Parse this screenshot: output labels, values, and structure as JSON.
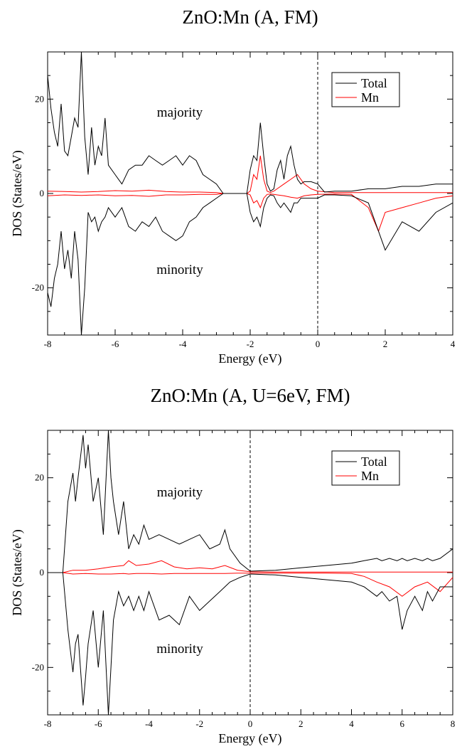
{
  "chart_data": [
    {
      "type": "line",
      "title": "ZnO:Mn (A, FM)",
      "xlabel": "Energy (eV)",
      "ylabel": "DOS (States/eV)",
      "xlim": [
        -8,
        4
      ],
      "ylim": [
        -30,
        30
      ],
      "xticks": [
        "-8",
        "-6",
        "-4",
        "-2",
        "0",
        "2",
        "4"
      ],
      "yticks": [
        "20",
        "0",
        "-20"
      ],
      "fermi_level": 0,
      "annotations": [
        "majority",
        "minority"
      ],
      "legend_position": "top-right",
      "series": [
        {
          "name": "Total",
          "color": "#000000",
          "x": [
            -8.0,
            -7.9,
            -7.8,
            -7.7,
            -7.6,
            -7.5,
            -7.4,
            -7.3,
            -7.2,
            -7.1,
            -7.0,
            -6.9,
            -6.8,
            -6.7,
            -6.6,
            -6.5,
            -6.4,
            -6.3,
            -6.2,
            -6.0,
            -5.9,
            -5.8,
            -5.6,
            -5.4,
            -5.2,
            -5.0,
            -4.8,
            -4.6,
            -4.4,
            -4.2,
            -4.0,
            -3.8,
            -3.6,
            -3.4,
            -3.2,
            -3.0,
            -2.8,
            -2.6,
            -2.4,
            -2.2,
            -2.1,
            -2.0,
            -1.9,
            -1.8,
            -1.7,
            -1.6,
            -1.5,
            -1.4,
            -1.3,
            -1.2,
            -1.1,
            -1.0,
            -0.9,
            -0.8,
            -0.7,
            -0.6,
            -0.5,
            -0.4,
            -0.2,
            0.0,
            0.2,
            0.5,
            1.0,
            1.5,
            2.0,
            2.5,
            3.0,
            3.5,
            4.0
          ],
          "majority": [
            25,
            18,
            13,
            10,
            19,
            9,
            8,
            12,
            16,
            14,
            30,
            12,
            4,
            14,
            6,
            10,
            8,
            16,
            6,
            4,
            3,
            2,
            5,
            6,
            6,
            8,
            7,
            6,
            7,
            8,
            6,
            8,
            7,
            4,
            3,
            2,
            0,
            0,
            0,
            0,
            0,
            5,
            8,
            7,
            15,
            8,
            2,
            0.5,
            1,
            5,
            7,
            3,
            8,
            10,
            6,
            3,
            2,
            2.5,
            2.5,
            2,
            0.3,
            0.5,
            0.5,
            1,
            1,
            1.5,
            1.5,
            2,
            2
          ],
          "minority": [
            -21,
            -24,
            -18,
            -15,
            -8,
            -16,
            -12,
            -18,
            -8,
            -14,
            -30,
            -20,
            -4,
            -6,
            -5,
            -8,
            -6,
            -5,
            -3,
            -5,
            -4,
            -3,
            -7,
            -8,
            -6,
            -7,
            -5,
            -8,
            -9,
            -10,
            -9,
            -6,
            -5,
            -3,
            -2,
            -1,
            0,
            0,
            0,
            0,
            0,
            -4,
            -6,
            -5,
            -7,
            -3,
            -1,
            -0.3,
            -0.5,
            -2,
            -3,
            -2,
            -3,
            -4,
            -2,
            -2,
            -1,
            -1,
            -1,
            -1,
            -0.3,
            -0.3,
            -0.5,
            -2,
            -12,
            -6,
            -8,
            -4,
            -2
          ]
        },
        {
          "name": "Mn",
          "color": "#ff0000",
          "x": [
            -8.0,
            -7.5,
            -7.0,
            -6.5,
            -6.0,
            -5.5,
            -5.0,
            -4.5,
            -4.0,
            -3.5,
            -3.0,
            -2.8,
            -2.4,
            -2.1,
            -2.0,
            -1.9,
            -1.8,
            -1.7,
            -1.6,
            -1.5,
            -1.4,
            -1.3,
            -1.2,
            -1.0,
            -0.8,
            -0.6,
            -0.4,
            -0.2,
            0.0,
            0.5,
            1.0,
            1.5,
            1.8,
            2.0,
            2.5,
            3.0,
            3.5,
            4.0
          ],
          "majority": [
            0.5,
            0.4,
            0.3,
            0.4,
            0.6,
            0.5,
            0.7,
            0.4,
            0.3,
            0.3,
            0.2,
            0,
            0,
            0,
            0.5,
            4,
            3,
            8,
            3,
            0.5,
            0.2,
            0.5,
            1,
            2,
            3,
            4,
            2,
            1,
            0.5,
            0.2,
            0.2,
            0.2,
            0.2,
            0.2,
            0.2,
            0.2,
            0.2,
            0.2
          ],
          "minority": [
            -0.5,
            -0.3,
            -0.4,
            -0.3,
            -0.5,
            -0.4,
            -0.6,
            -0.3,
            -0.3,
            -0.2,
            -0.2,
            0,
            0,
            0,
            -0.3,
            -2,
            -1.5,
            -3,
            -1,
            -0.2,
            -0.1,
            -0.2,
            -0.3,
            -0.5,
            -0.8,
            -1,
            -0.5,
            -0.3,
            -0.2,
            -0.1,
            -0.2,
            -3,
            -8,
            -4,
            -3,
            -2,
            -1,
            -0.5
          ]
        }
      ]
    },
    {
      "type": "line",
      "title": "ZnO:Mn (A, U=6eV, FM)",
      "xlabel": "Energy (eV)",
      "ylabel": "DOS (States/eV)",
      "xlim": [
        -8,
        8
      ],
      "ylim": [
        -30,
        30
      ],
      "xticks": [
        "-8",
        "-6",
        "-4",
        "-2",
        "0",
        "2",
        "4",
        "6",
        "8"
      ],
      "yticks": [
        "20",
        "0",
        "-20"
      ],
      "fermi_level": 0,
      "annotations": [
        "majority",
        "minority"
      ],
      "legend_position": "top-right",
      "series": [
        {
          "name": "Total",
          "color": "#000000",
          "x": [
            -8.0,
            -7.4,
            -7.2,
            -7.0,
            -6.9,
            -6.8,
            -6.6,
            -6.5,
            -6.4,
            -6.2,
            -6.0,
            -5.8,
            -5.6,
            -5.5,
            -5.4,
            -5.2,
            -5.0,
            -4.8,
            -4.6,
            -4.4,
            -4.2,
            -4.0,
            -3.6,
            -3.2,
            -2.8,
            -2.4,
            -2.0,
            -1.6,
            -1.2,
            -1.0,
            -0.8,
            -0.4,
            0.0,
            1.0,
            2.0,
            3.0,
            4.0,
            4.5,
            5.0,
            5.2,
            5.5,
            5.8,
            6.0,
            6.2,
            6.5,
            6.8,
            7.0,
            7.2,
            7.5,
            8.0
          ],
          "majority": [
            0,
            0,
            15,
            21,
            15,
            20,
            29,
            22,
            27,
            15,
            20,
            8,
            30,
            20,
            15,
            8,
            15,
            5,
            8,
            6,
            10,
            7,
            8,
            7,
            6,
            7,
            8,
            5,
            6,
            9,
            5,
            2,
            0.3,
            0.5,
            1,
            1.5,
            2,
            2.5,
            3,
            2.5,
            3,
            2.5,
            3,
            2.5,
            3,
            2.5,
            3,
            2.5,
            3,
            5
          ],
          "minority": [
            0,
            0,
            -12,
            -21,
            -15,
            -13,
            -28,
            -22,
            -15,
            -8,
            -20,
            -8,
            -30,
            -20,
            -10,
            -4,
            -7,
            -5,
            -8,
            -5,
            -8,
            -4,
            -10,
            -9,
            -11,
            -5,
            -8,
            -6,
            -4,
            -3,
            -2,
            -1,
            -0.3,
            -0.5,
            -1,
            -1.5,
            -2,
            -3,
            -5,
            -4,
            -6,
            -5,
            -12,
            -8,
            -5,
            -8,
            -4,
            -6,
            -3,
            -3
          ]
        },
        {
          "name": "Mn",
          "color": "#ff0000",
          "x": [
            -8.0,
            -7.4,
            -7.0,
            -6.5,
            -6.0,
            -5.5,
            -5.0,
            -4.8,
            -4.5,
            -4.0,
            -3.5,
            -3.0,
            -2.5,
            -2.0,
            -1.5,
            -1.0,
            -0.5,
            0.0,
            1.0,
            2.0,
            3.0,
            4.0,
            4.5,
            5.0,
            5.5,
            6.0,
            6.5,
            7.0,
            7.5,
            8.0
          ],
          "majority": [
            0,
            0,
            0.5,
            0.5,
            0.8,
            1.2,
            1.5,
            2.5,
            1.5,
            1.8,
            2.5,
            1.2,
            0.8,
            1,
            0.8,
            1.5,
            0.5,
            0.2,
            0.1,
            0.1,
            0.1,
            0.1,
            0.1,
            0.1,
            0.1,
            0.1,
            0.1,
            0.1,
            0.1,
            0.1
          ],
          "minority": [
            0,
            0,
            -0.3,
            -0.2,
            -0.3,
            -0.3,
            -0.2,
            -0.3,
            -0.2,
            -0.2,
            -0.3,
            -0.2,
            -0.2,
            -0.2,
            -0.2,
            -0.2,
            -0.1,
            -0.1,
            -0.1,
            -0.1,
            -0.1,
            -0.2,
            -0.8,
            -2,
            -3,
            -5,
            -3,
            -2,
            -4,
            -1
          ]
        }
      ]
    }
  ]
}
